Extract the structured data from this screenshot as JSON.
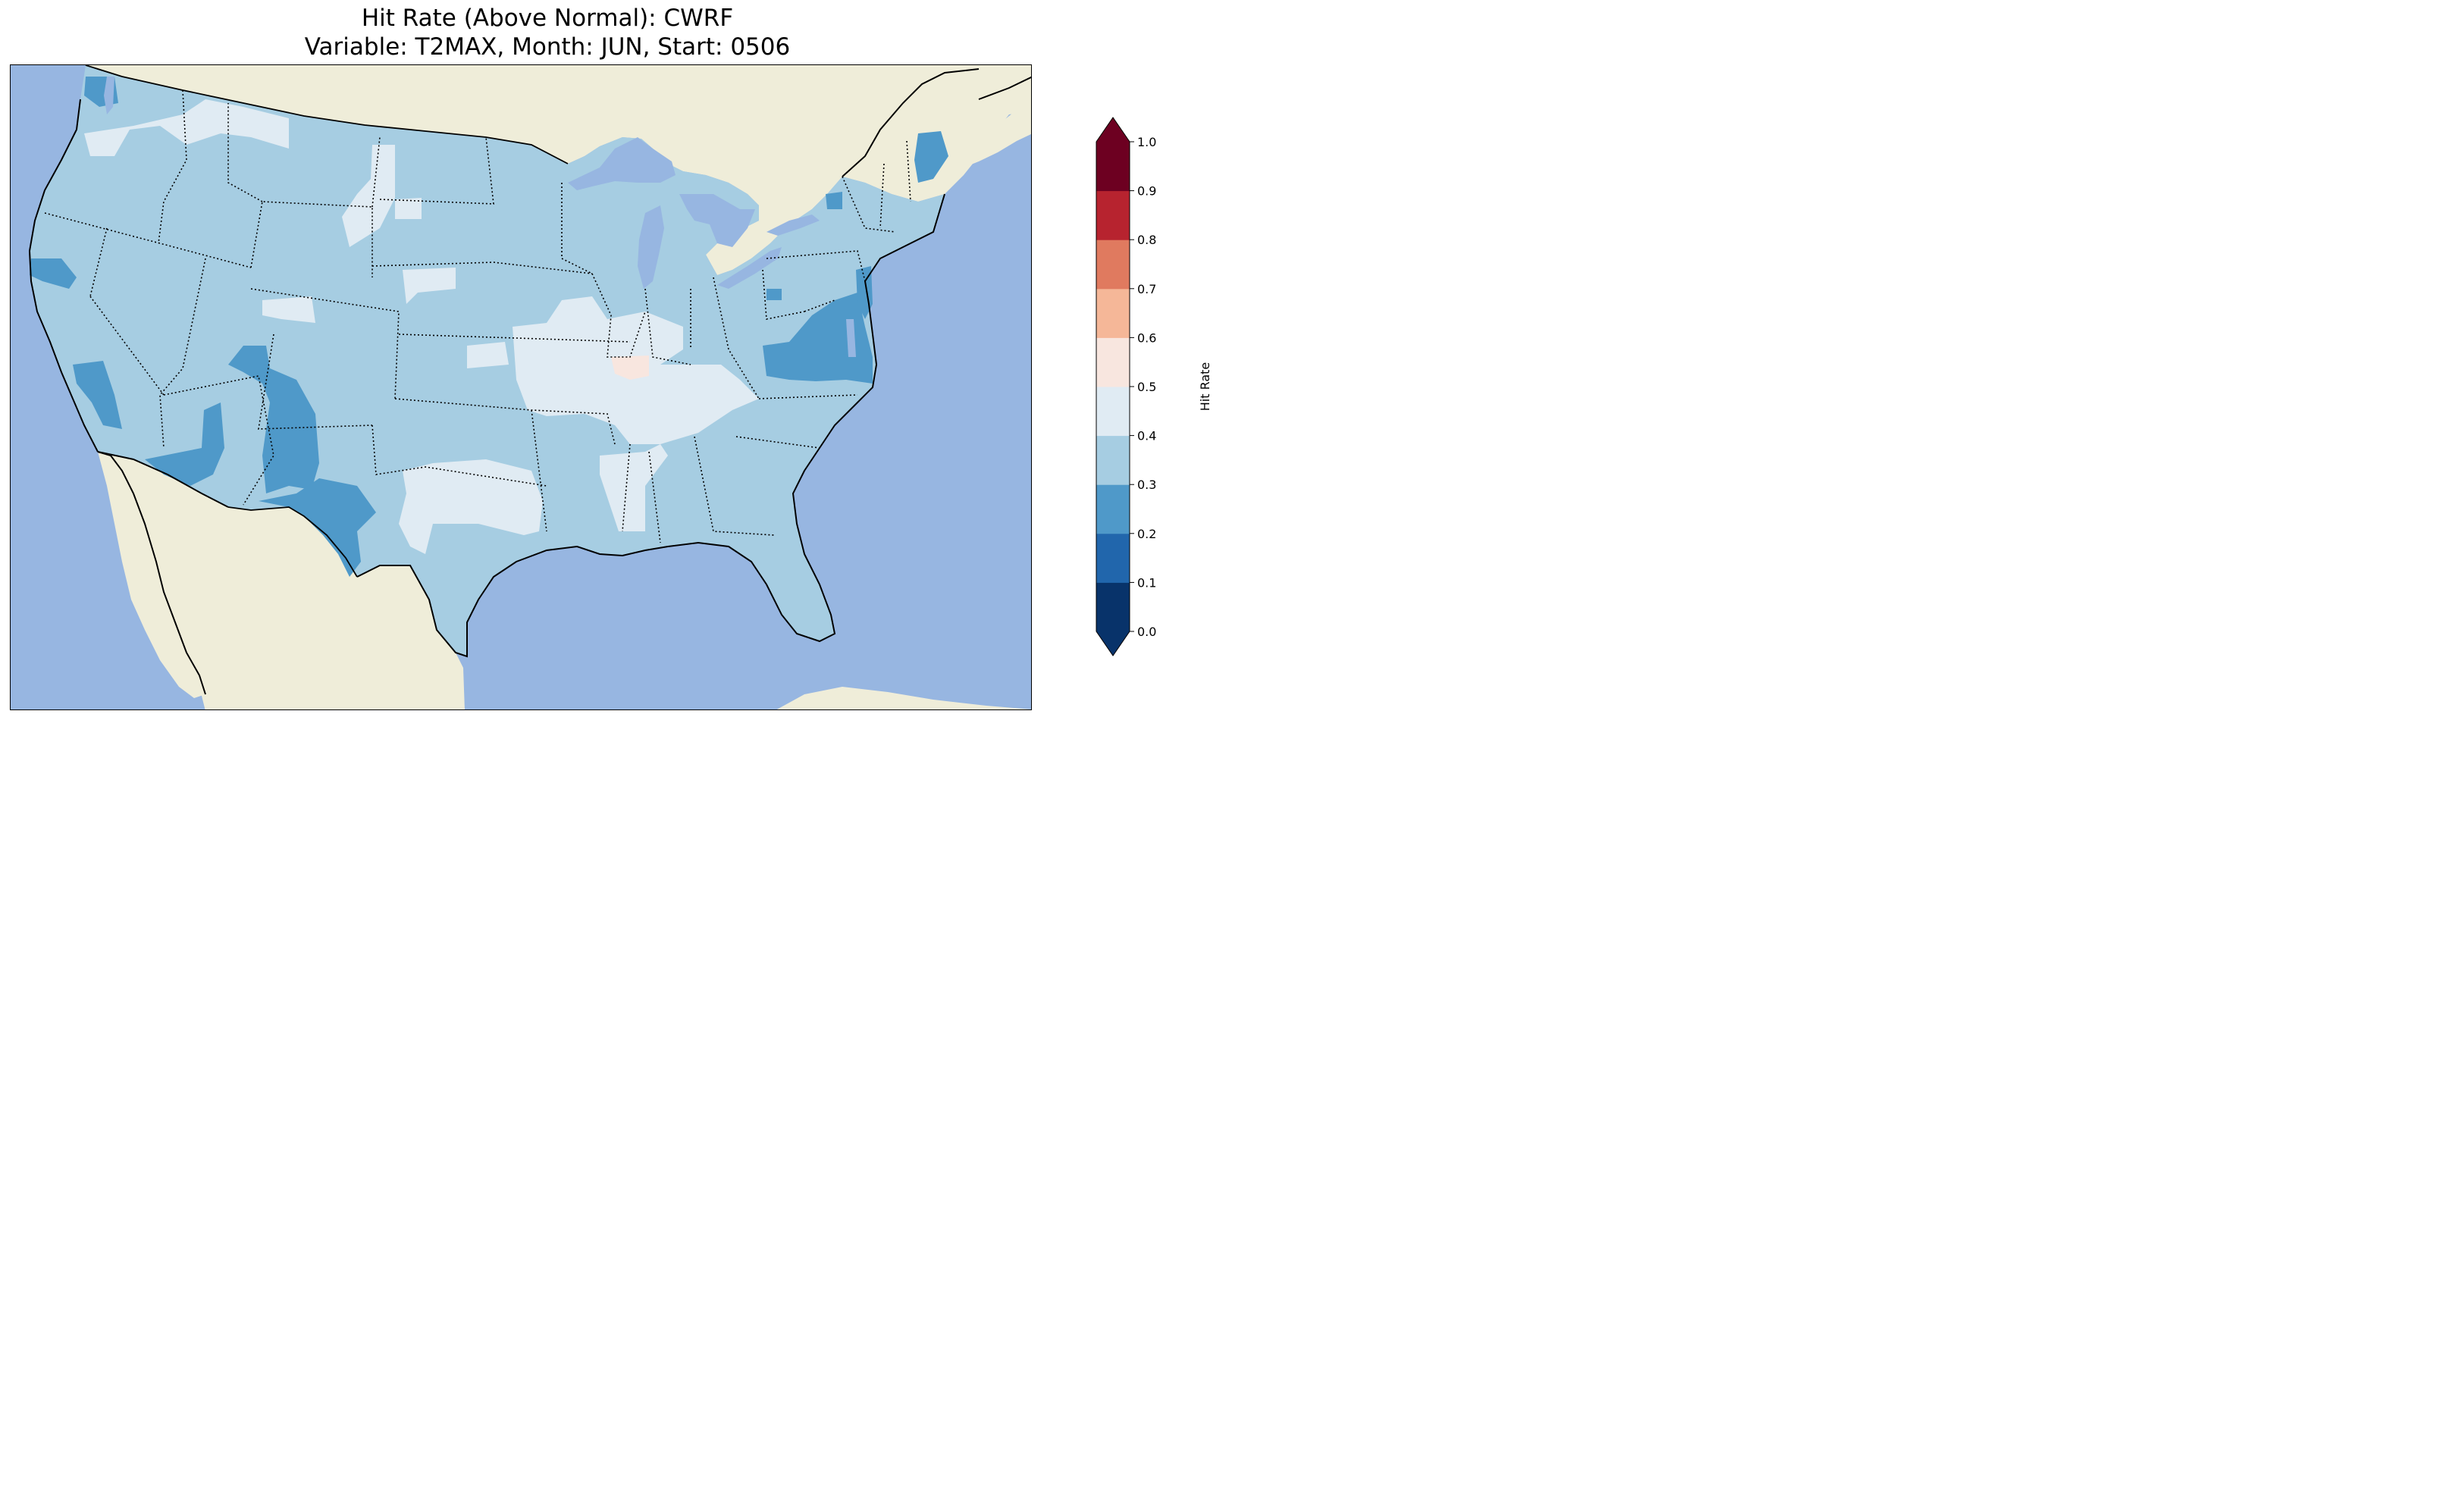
{
  "title": {
    "line1": "Hit Rate (Above Normal): CWRF",
    "line2": "Variable: T2MAX, Month: JUN, Start: 0506"
  },
  "map": {
    "region": "Contiguous United States",
    "projection": "Lambert Conformal",
    "ocean_color": "#97b6e1",
    "land_color": "#efedd9",
    "borders": [
      "coastlines",
      "country borders",
      "state borders (dotted)"
    ]
  },
  "colorbar": {
    "label": "Hit Rate",
    "ticks": [
      "0.0",
      "0.1",
      "0.2",
      "0.3",
      "0.4",
      "0.5",
      "0.6",
      "0.7",
      "0.8",
      "0.9",
      "1.0"
    ],
    "extend": "both",
    "colors": [
      "#053061",
      "#2166ac",
      "#4393c3",
      "#92c5de",
      "#d1e5f0",
      "#fddbc7",
      "#f4a582",
      "#d6604d",
      "#b2182b",
      "#67001f"
    ],
    "bin_colors": [
      "#08336a",
      "#2166ac",
      "#4f99c9",
      "#a6cde2",
      "#e0ebf3",
      "#f8e6df",
      "#f5b798",
      "#e07a5f",
      "#b7232f",
      "#6d0021"
    ]
  },
  "regions": [
    {
      "name": "Pacific Northwest",
      "class": "0.4-0.5"
    },
    {
      "name": "Northern Rockies",
      "class": "0.4-0.5"
    },
    {
      "name": "Great Basin / Interior West",
      "class": "0.3-0.4"
    },
    {
      "name": "Central California coast",
      "class": "0.2-0.3"
    },
    {
      "name": "Southern Nevada / Arizona",
      "class": "0.2-0.3"
    },
    {
      "name": "Four Corners / Southern Rockies",
      "class": "0.2-0.3"
    },
    {
      "name": "Northern Great Plains",
      "class": "0.3-0.4"
    },
    {
      "name": "Missouri / Mississippi Valley",
      "class": "0.4-0.5"
    },
    {
      "name": "Southern Illinois",
      "class": "0.5-0.6"
    },
    {
      "name": "Tennessee / Kentucky",
      "class": "0.4-0.5"
    },
    {
      "name": "West Texas / Oklahoma",
      "class": "0.4-0.5"
    },
    {
      "name": "Southwest Texas border",
      "class": "0.2-0.3"
    },
    {
      "name": "Virginia / Mid-Atlantic",
      "class": "0.2-0.3"
    },
    {
      "name": "Maine",
      "class": "0.2-0.3"
    },
    {
      "name": "Southeast / Gulf Coast",
      "class": "0.3-0.4"
    }
  ]
}
